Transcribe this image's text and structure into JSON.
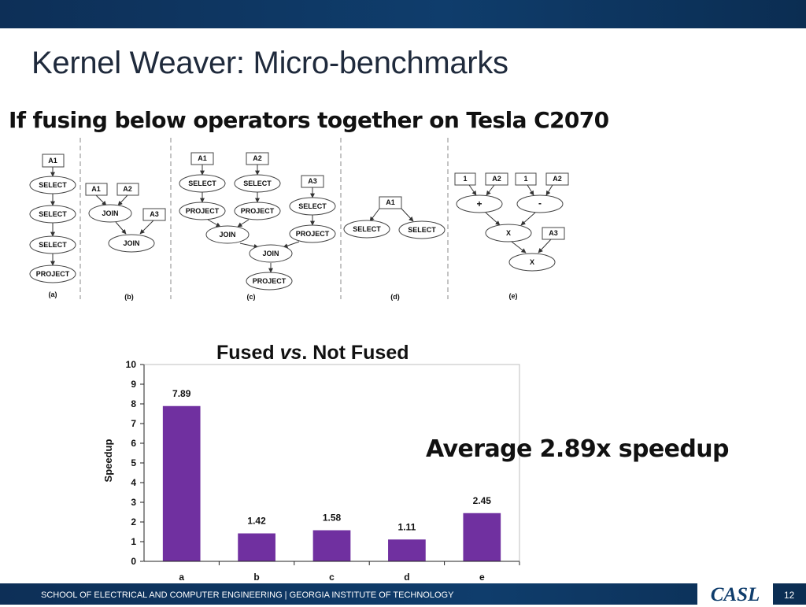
{
  "slide": {
    "title": "Kernel Weaver: Micro-benchmarks",
    "subtitle": "If fusing below operators together on Tesla C2070",
    "speedup_note": "Average 2.89x speedup"
  },
  "diagrams": {
    "a": {
      "caption": "(a)",
      "nodes": [
        "A1",
        "SELECT",
        "SELECT",
        "SELECT",
        "PROJECT"
      ]
    },
    "b": {
      "caption": "(b)",
      "nodes": [
        "A1",
        "A2",
        "JOIN",
        "A3",
        "JOIN"
      ]
    },
    "c": {
      "caption": "(c)",
      "nodes": [
        "A1",
        "A2",
        "SELECT",
        "SELECT",
        "A3",
        "PROJECT",
        "PROJECT",
        "SELECT",
        "JOIN",
        "PROJECT",
        "JOIN",
        "PROJECT"
      ]
    },
    "d": {
      "caption": "(d)",
      "nodes": [
        "A1",
        "SELECT",
        "SELECT"
      ]
    },
    "e": {
      "caption": "(e)",
      "nodes": [
        "1",
        "A2",
        "1",
        "A2",
        "+",
        "-",
        "X",
        "A3",
        "X"
      ]
    }
  },
  "chart_data": {
    "type": "bar",
    "title_prefix": "Fused ",
    "title_vs": "vs",
    "title_suffix": ". Not Fused",
    "ylabel": "Speedup",
    "xlabel": "",
    "categories": [
      "a",
      "b",
      "c",
      "d",
      "e"
    ],
    "values": [
      7.89,
      1.42,
      1.58,
      1.11,
      2.45
    ],
    "data_labels": [
      "7.89",
      "1.42",
      "1.58",
      "1.11",
      "2.45"
    ],
    "ylim": [
      0,
      10
    ],
    "yticks": [
      0,
      1,
      2,
      3,
      4,
      5,
      6,
      7,
      8,
      9,
      10
    ],
    "bar_color": "#7030a0",
    "grid": false,
    "legend": "none"
  },
  "footer": {
    "text": "SCHOOL OF ELECTRICAL AND COMPUTER ENGINEERING | GEORGIA INSTITUTE OF TECHNOLOGY",
    "logo": "CASL",
    "page_number": "12"
  },
  "colors": {
    "brand_navy": "#0f3d6c",
    "bar": "#7030a0"
  }
}
